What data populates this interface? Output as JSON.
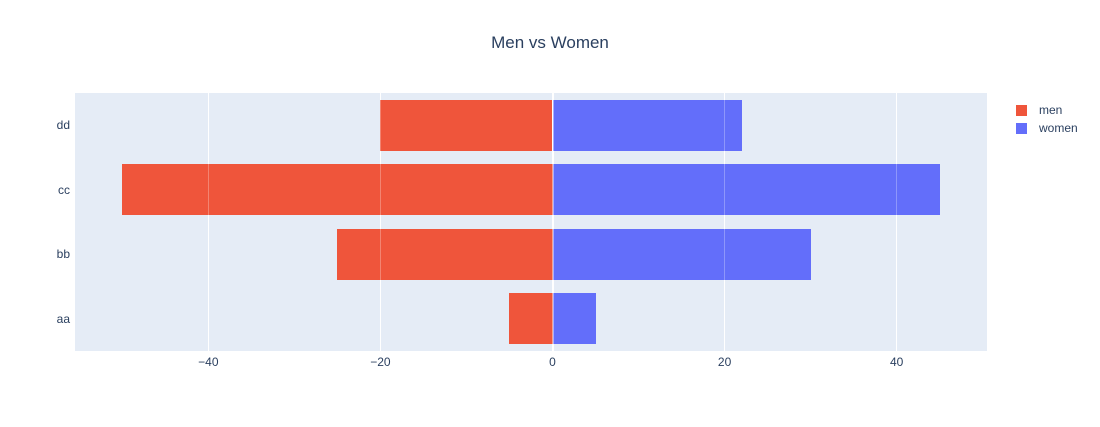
{
  "title": "Men vs Women",
  "colors": {
    "plot_background": "#E5ECF6",
    "page_background": "#FFFFFF",
    "gridline": "#FFFFFF",
    "text": "#2A3F5F",
    "men": "#EF553B",
    "women": "#636EFA"
  },
  "legend": {
    "items": [
      {
        "label": "men",
        "color": "#EF553B"
      },
      {
        "label": "women",
        "color": "#636EFA"
      }
    ]
  },
  "chart_data": {
    "type": "bar",
    "orientation": "horizontal",
    "diverging": true,
    "title": "Men vs Women",
    "xlabel": "",
    "ylabel": "",
    "categories": [
      "aa",
      "bb",
      "cc",
      "dd"
    ],
    "category_order": "bottom-to-top",
    "series": [
      {
        "name": "men",
        "color": "#EF553B",
        "values": [
          -5,
          -25,
          -50,
          -20
        ]
      },
      {
        "name": "women",
        "color": "#636EFA",
        "values": [
          5,
          30,
          45,
          22
        ]
      }
    ],
    "x_ticks": [
      -40,
      -20,
      0,
      20,
      40
    ],
    "x_tick_labels": [
      "−40",
      "−20",
      "0",
      "20",
      "40"
    ],
    "xlim": [
      -55.5,
      50.5
    ],
    "grid": true,
    "legend_position": "top-right-outside",
    "bar_mode": "relative"
  }
}
